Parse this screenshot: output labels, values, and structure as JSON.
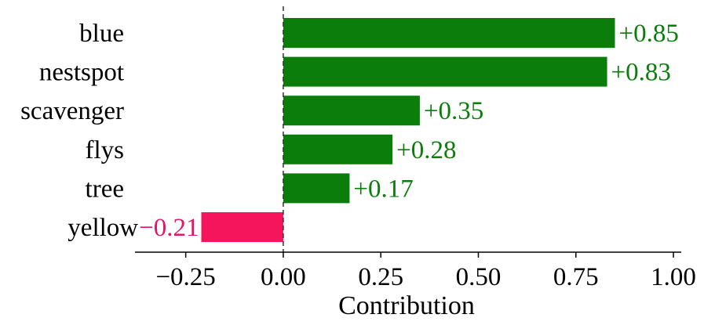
{
  "chart_data": {
    "type": "bar",
    "orientation": "horizontal",
    "categories": [
      "blue",
      "nestspot",
      "scavenger",
      "flys",
      "tree",
      "yellow"
    ],
    "values": [
      0.85,
      0.83,
      0.35,
      0.28,
      0.17,
      -0.21
    ],
    "value_labels": [
      "+0.85",
      "+0.83",
      "+0.35",
      "+0.28",
      "+0.17",
      "−0.21"
    ],
    "xlabel": "Contribution",
    "xlim": [
      -0.38,
      1.02
    ],
    "xticks": [
      -0.25,
      0.0,
      0.25,
      0.5,
      0.75,
      1.0
    ],
    "xtick_labels": [
      "−0.25",
      "0.00",
      "0.25",
      "0.50",
      "0.75",
      "1.00"
    ],
    "zero_line": "dashed",
    "colors": {
      "positive": "#0a7d0a",
      "negative": "#f5155c",
      "positive_text": "#0a7d0a",
      "negative_text": "#e0156b"
    }
  }
}
